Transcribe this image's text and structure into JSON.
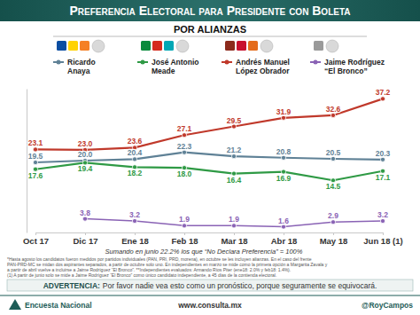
{
  "chart_data": {
    "type": "line",
    "title": "Preferencia Electoral para Presidente con Boleta",
    "subtitle": "POR ALIANZAS",
    "categories": [
      "Oct 17",
      "Dic 17",
      "Ene 18",
      "Feb 18",
      "Mar 18",
      "Abr 18",
      "May 18",
      "Jun 18 (1)"
    ],
    "series": [
      {
        "name": "Ricardo Anaya",
        "color": "#5f8196",
        "marker": "circle",
        "values": [
          19.5,
          20.0,
          20.4,
          22.3,
          21.2,
          20.8,
          20.5,
          20.3
        ],
        "value_labels": [
          "19.5",
          "20.0",
          "20.4",
          "22.3",
          "21.2",
          "20.8",
          "20.5",
          "20.3"
        ]
      },
      {
        "name": "José Antonio Meade",
        "color": "#2f9a45",
        "marker": "circle",
        "values": [
          17.6,
          19.4,
          18.2,
          18.0,
          16.4,
          16.9,
          14.5,
          17.1
        ],
        "value_labels": [
          "17.6",
          "19.4",
          "18.2",
          "18.0",
          "16.4",
          "16.9",
          "14.5",
          "17.1"
        ]
      },
      {
        "name": "Andrés Manuel López Obrador",
        "color": "#c0392b",
        "marker": "circle",
        "values": [
          23.1,
          23.0,
          23.6,
          27.1,
          29.5,
          31.9,
          32.6,
          37.2
        ],
        "value_labels": [
          "23.1",
          "23.0",
          "23.6",
          "27.1",
          "29.5",
          "31.9",
          "32.6",
          "37.2"
        ]
      },
      {
        "name": "Jaime Rodríguez “El Bronco”",
        "color": "#8a63b5",
        "marker": "circle",
        "values": [
          null,
          3.8,
          3.2,
          1.9,
          1.9,
          1.6,
          2.9,
          3.2
        ],
        "value_labels": [
          null,
          "3.8",
          "3.2",
          "1.9",
          "1.9",
          "1.6",
          "2.9",
          "3.2"
        ]
      }
    ],
    "ylim": [
      0,
      40
    ],
    "tick_labels": "x",
    "data_labels": true,
    "annotations": [
      "Sumando en junio 22.2% los que “No Declara Preferencia” = 100%",
      "*Hasta agosto los candidatos fueron medidos por partidos individuales (PAN, PRI, PRD, morena), en octubre se les incluyen alianzas. En el caso del frente",
      "PAN-PRD-MC se midan dos aspirantes separados, a partir de octubre solo uno. En independientes en marzo se mide como la primera opción a Margarita Zavala y",
      "a partir de abril vuelve a incluirse a Jaime Rodríguez “El Bronco”. **Independientes evaluados: Armando Ríos Piter (ene18: 2.0% y feb18: 1.4%).",
      "(1) A partir de junio solo se mide a Jaime Rodríguez “El Bronco” como único candidato independiente, a 45 días de la contienda electoral.",
      "ADVERTENCIA:",
      "Por favor nadie vea esto como un pronóstico, porque seguramente se equivocará.",
      "Encuesta Nacional",
      "www.consulta.mx",
      "@RoyCampos"
    ]
  }
}
